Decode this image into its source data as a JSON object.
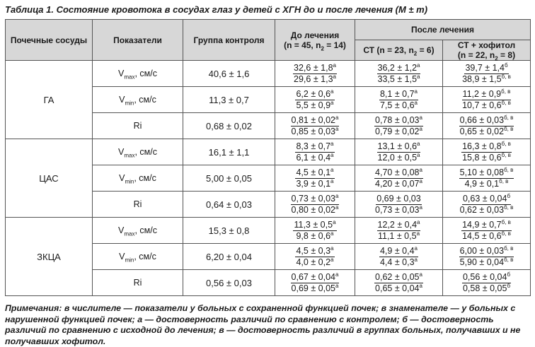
{
  "caption": "Таблица 1. Состояние кровотока в сосудах глаз у детей с ХГН до и после лечения (M ± m)",
  "header": {
    "vessels": "Почечные сосуды",
    "indicators": "Показатели",
    "control": "Группа контроля",
    "before": "До лечения",
    "before_n": "(n = 45, n",
    "before_n_sub": "2",
    "before_n_end": " = 14)",
    "after": "После лечения",
    "st": "СТ (n = 23, n",
    "st_sub": "2",
    "st_end": " = 6)",
    "st_hof": "СТ + хофитол",
    "st_hof_n": "(n = 22, n",
    "st_hof_sub": "2",
    "st_hof_end": " = 8)"
  },
  "groups": [
    {
      "name": "ГА",
      "rows": [
        {
          "ind": "V",
          "sub": "max",
          "unit": ", см/с",
          "control": "40,6 ± 1,6",
          "before": {
            "n": "32,6 ± 1,8",
            "ns": "а",
            "d": "29,6 ± 1,3",
            "ds": "а"
          },
          "st": {
            "n": "36,2 ± 1,2",
            "ns": "а",
            "d": "33,5 ± 1,5",
            "ds": "а"
          },
          "sth": {
            "n": "39,7 ± 1,4",
            "ns": "б",
            "d": "38,9 ± 1,5",
            "ds": "б, в"
          }
        },
        {
          "ind": "V",
          "sub": "min",
          "unit": ", см/с",
          "control": "11,3 ± 0,7",
          "before": {
            "n": "6,2 ± 0,6",
            "ns": "а",
            "d": "5,5 ± 0,9",
            "ds": "а"
          },
          "st": {
            "n": "8,1 ± 0,7",
            "ns": "а",
            "d": "7,5 ± 0,6",
            "ds": "а"
          },
          "sth": {
            "n": "11,2 ± 0,9",
            "ns": "б, в",
            "d": "10,7 ± 0,6",
            "ds": "б, в"
          }
        },
        {
          "ind": "Ri",
          "sub": "",
          "unit": "",
          "control": "0,68 ± 0,02",
          "before": {
            "n": "0,81 ± 0,02",
            "ns": "а",
            "d": "0,85 ± 0,03",
            "ds": "а"
          },
          "st": {
            "n": "0,78 ± 0,03",
            "ns": "а",
            "d": "0,79 ± 0,02",
            "ds": "а"
          },
          "sth": {
            "n": "0,66 ± 0,03",
            "ns": "б, в",
            "d": "0,65 ± 0,02",
            "ds": "б, в"
          }
        }
      ]
    },
    {
      "name": "ЦАС",
      "rows": [
        {
          "ind": "V",
          "sub": "max",
          "unit": ", см/с",
          "control": "16,1 ± 1,1",
          "before": {
            "n": "8,3 ± 0,7",
            "ns": "а",
            "d": "6,1 ± 0,4",
            "ds": "а"
          },
          "st": {
            "n": "13,1 ± 0,6",
            "ns": "а",
            "d": "12,0 ± 0,5",
            "ds": "а"
          },
          "sth": {
            "n": "16,3 ± 0,8",
            "ns": "б, в",
            "d": "15,8 ± 0,6",
            "ds": "б, в"
          }
        },
        {
          "ind": "V",
          "sub": "min",
          "unit": ", см/с",
          "control": "5,00 ± 0,05",
          "before": {
            "n": "4,5 ± 0,1",
            "ns": "а",
            "d": "3,9 ± 0,1",
            "ds": "а"
          },
          "st": {
            "n": "4,70 ± 0,08",
            "ns": "а",
            "d": "4,20 ± 0,07",
            "ds": "а"
          },
          "sth": {
            "n": "5,10 ± 0,08",
            "ns": "б, в",
            "d": "4,9 ± 0,1",
            "ds": "б, в"
          }
        },
        {
          "ind": "Ri",
          "sub": "",
          "unit": "",
          "control": "0,64 ± 0,03",
          "before": {
            "n": "0,73 ± 0,03",
            "ns": "а",
            "d": "0,80 ± 0,02",
            "ds": "а"
          },
          "st": {
            "n": "0,69 ± 0,03",
            "ns": "",
            "d": "0,73 ± 0,03",
            "ds": "а"
          },
          "sth": {
            "n": "0,63 ± 0,04",
            "ns": "б",
            "d": "0,62 ± 0,03",
            "ds": "б, в"
          }
        }
      ]
    },
    {
      "name": "ЗКЦА",
      "rows": [
        {
          "ind": "V",
          "sub": "max",
          "unit": ", см/с",
          "control": "15,3 ± 0,8",
          "before": {
            "n": "11,3 ± 0,5",
            "ns": "а",
            "d": "9,8 ± 0,6",
            "ds": "а"
          },
          "st": {
            "n": "12,2 ± 0,4",
            "ns": "а",
            "d": "11,1 ± 0,5",
            "ds": "а"
          },
          "sth": {
            "n": "14,9 ± 0,7",
            "ns": "б, в",
            "d": "14,5 ± 0,6",
            "ds": "б, в"
          }
        },
        {
          "ind": "V",
          "sub": "min",
          "unit": ", см/с",
          "control": "6,20 ± 0,04",
          "before": {
            "n": "4,5 ± 0,3",
            "ns": "а",
            "d": "4,0 ± 0,2",
            "ds": "а"
          },
          "st": {
            "n": "4,9 ± 0,4",
            "ns": "а",
            "d": "4,4 ± 0,3",
            "ds": "а"
          },
          "sth": {
            "n": "6,00 ± 0,03",
            "ns": "б, в",
            "d": "5,90 ± 0,04",
            "ds": "б, в"
          }
        },
        {
          "ind": "Ri",
          "sub": "",
          "unit": "",
          "control": "0,56 ± 0,03",
          "before": {
            "n": "0,67 ± 0,04",
            "ns": "а",
            "d": "0,69 ± 0,05",
            "ds": "а"
          },
          "st": {
            "n": "0,62 ± 0,05",
            "ns": "а",
            "d": "0,65 ± 0,04",
            "ds": "а"
          },
          "sth": {
            "n": "0,56 ± 0,04",
            "ns": "б",
            "d": "0,58 ± 0,05",
            "ds": "б"
          }
        }
      ]
    }
  ],
  "notes": "Примечания: в числителе — показатели у больных с сохраненной функцией почек; в знаменателе — у больных с нарушенной функцией почек; а — достоверность различий по сравнению с контролем; б — достоверность различий по сравнению с исходной до лечения; в — достоверность различий в группах больных, получавших и не получавших хофитол."
}
